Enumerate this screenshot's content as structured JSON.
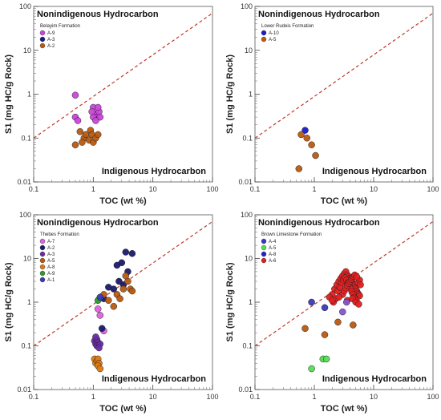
{
  "chart_data": [
    {
      "type": "scatter",
      "log_x": true,
      "log_y": true,
      "xlim": [
        0.1,
        100
      ],
      "ylim": [
        0.01,
        100
      ],
      "xticks": [
        "0.1",
        "1",
        "10",
        "100"
      ],
      "yticks": [
        "0.01",
        "0.1",
        "1",
        "10",
        "100"
      ],
      "xlabel": "TOC (wt %)",
      "ylabel": "S1 (mg HC/g Rock)",
      "upper_label": "Nonindigenous Hydrocarbon",
      "lower_label": "Indigenous Hydrocarbon",
      "divider_line": {
        "x": [
          0.1,
          100
        ],
        "y": [
          0.1,
          70
        ],
        "style": "dashed",
        "color": "#c0392b"
      },
      "legend_title": "Belayim Formation",
      "series": [
        {
          "name": "A-9",
          "color": "#cc44dd",
          "points": [
            [
              0.5,
              0.95
            ],
            [
              0.5,
              0.3
            ],
            [
              0.55,
              0.25
            ],
            [
              1.0,
              0.5
            ],
            [
              1.1,
              0.35
            ],
            [
              1.15,
              0.3
            ],
            [
              1.25,
              0.4
            ],
            [
              1.2,
              0.5
            ],
            [
              1.3,
              0.3
            ],
            [
              1.0,
              0.3
            ],
            [
              1.1,
              0.25
            ],
            [
              0.95,
              0.4
            ]
          ]
        },
        {
          "name": "A-3",
          "color": "#1a1a8c",
          "points": []
        },
        {
          "name": "A-2",
          "color": "#b85a10",
          "points": [
            [
              0.5,
              0.07
            ],
            [
              0.6,
              0.14
            ],
            [
              0.7,
              0.1
            ],
            [
              0.75,
              0.12
            ],
            [
              0.85,
              0.09
            ],
            [
              0.9,
              0.15
            ],
            [
              0.95,
              0.12
            ],
            [
              1.0,
              0.08
            ],
            [
              1.1,
              0.1
            ],
            [
              1.2,
              0.12
            ],
            [
              0.65,
              0.08
            ]
          ]
        }
      ]
    },
    {
      "type": "scatter",
      "log_x": true,
      "log_y": true,
      "xlim": [
        0.1,
        100
      ],
      "ylim": [
        0.01,
        100
      ],
      "xticks": [
        "0.1",
        "1",
        "10",
        "100"
      ],
      "yticks": [
        "0.01",
        "0.1",
        "1",
        "10",
        "100"
      ],
      "xlabel": "TOC (wt %)",
      "ylabel": "S1 (mg HC/g Rock)",
      "upper_label": "Nonindigenous Hydrocarbon",
      "lower_label": "Indigenous Hydrocarbon",
      "divider_line": {
        "x": [
          0.1,
          100
        ],
        "y": [
          0.1,
          70
        ],
        "style": "dashed",
        "color": "#c0392b"
      },
      "legend_title": "Lower Rudeis Formation",
      "series": [
        {
          "name": "A-10",
          "color": "#1a1acc",
          "points": [
            [
              0.7,
              0.15
            ]
          ]
        },
        {
          "name": "A-5",
          "color": "#b85a10",
          "points": [
            [
              0.6,
              0.12
            ],
            [
              0.75,
              0.1
            ],
            [
              0.9,
              0.07
            ],
            [
              1.05,
              0.04
            ],
            [
              0.55,
              0.02
            ]
          ]
        }
      ]
    },
    {
      "type": "scatter",
      "log_x": true,
      "log_y": true,
      "xlim": [
        0.1,
        100
      ],
      "ylim": [
        0.01,
        100
      ],
      "xticks": [
        "0.1",
        "1",
        "10",
        "100"
      ],
      "yticks": [
        "0.01",
        "0.1",
        "1",
        "10",
        "100"
      ],
      "xlabel": "TOC (wt %)",
      "ylabel": "S1 (mg HC/g Rock)",
      "upper_label": "Nonindigenous Hydrocarbon",
      "lower_label": "Indigenous Hydrocarbon",
      "divider_line": {
        "x": [
          0.1,
          100
        ],
        "y": [
          0.1,
          70
        ],
        "style": "dashed",
        "color": "#c0392b"
      },
      "legend_title": "Thebes Formation",
      "series": [
        {
          "name": "A-7",
          "color": "#e060e0",
          "points": [
            [
              1.3,
              0.5
            ],
            [
              1.5,
              0.22
            ],
            [
              1.2,
              0.7
            ]
          ]
        },
        {
          "name": "A-2",
          "color": "#1a1a6e",
          "points": [
            [
              3.5,
              14
            ],
            [
              4.5,
              13
            ],
            [
              3.0,
              8
            ],
            [
              2.5,
              7
            ],
            [
              3.8,
              5
            ],
            [
              2.7,
              3
            ],
            [
              2.2,
              2
            ],
            [
              1.5,
              1.2
            ],
            [
              3.2,
              2.5
            ],
            [
              1.8,
              2.2
            ],
            [
              1.4,
              0.25
            ]
          ]
        },
        {
          "name": "A-3",
          "color": "#6a2aa8",
          "points": [
            [
              1.05,
              0.13
            ],
            [
              1.1,
              0.11
            ],
            [
              1.15,
              0.1
            ],
            [
              1.2,
              0.12
            ],
            [
              1.3,
              0.11
            ],
            [
              1.25,
              0.09
            ],
            [
              1.15,
              0.14
            ],
            [
              1.1,
              0.16
            ]
          ]
        },
        {
          "name": "A-5",
          "color": "#b85a10",
          "points": [
            [
              2.5,
              1.5
            ],
            [
              3.2,
              2
            ],
            [
              3.8,
              3
            ],
            [
              4.2,
              2
            ],
            [
              3.5,
              4
            ],
            [
              2.8,
              1.2
            ],
            [
              1.5,
              1.5
            ],
            [
              1.8,
              1.1
            ],
            [
              2.2,
              0.8
            ],
            [
              4.5,
              1.8
            ]
          ]
        },
        {
          "name": "A-8",
          "color": "#e07a10",
          "points": [
            [
              1.05,
              0.05
            ],
            [
              1.1,
              0.04
            ],
            [
              1.15,
              0.045
            ],
            [
              1.2,
              0.05
            ],
            [
              1.25,
              0.04
            ],
            [
              1.2,
              0.035
            ],
            [
              1.3,
              0.03
            ]
          ]
        },
        {
          "name": "A-9",
          "color": "#2a9a2a",
          "points": [
            [
              1.2,
              1.1
            ]
          ]
        },
        {
          "name": "A-1",
          "color": "#3a3ab8",
          "points": [
            [
              1.3,
              1.3
            ]
          ]
        }
      ]
    },
    {
      "type": "scatter",
      "log_x": true,
      "log_y": true,
      "xlim": [
        0.1,
        100
      ],
      "ylim": [
        0.01,
        100
      ],
      "xticks": [
        "0.1",
        "1",
        "10",
        "100"
      ],
      "yticks": [
        "0.01",
        "0.1",
        "1",
        "10",
        "100"
      ],
      "xlabel": "TOC (wt %)",
      "ylabel": "S1 (mg HC/g Rock)",
      "upper_label": "Nonindigenous Hydrocarbon",
      "lower_label": "Indigenous Hydrocarbon",
      "divider_line": {
        "x": [
          0.1,
          100
        ],
        "y": [
          0.1,
          70
        ],
        "style": "dashed",
        "color": "#c0392b"
      },
      "legend_title": "Brown Limestone Formation",
      "series": [
        {
          "name": "A-4",
          "color": "#3a3ab8",
          "points": [
            [
              0.9,
              1.0
            ],
            [
              1.5,
              0.75
            ]
          ]
        },
        {
          "name": "A-5",
          "color": "#55dd55",
          "points": [
            [
              0.9,
              0.03
            ],
            [
              1.4,
              0.05
            ],
            [
              1.6,
              0.05
            ]
          ]
        },
        {
          "name": "A-8",
          "color": "#2222cc",
          "points": []
        },
        {
          "name": "A-6",
          "color": "#e02020",
          "points": [
            [
              2.0,
              1.5
            ],
            [
              2.2,
              2.0
            ],
            [
              2.4,
              2.5
            ],
            [
              2.6,
              3.0
            ],
            [
              2.8,
              3.5
            ],
            [
              3.0,
              4.0
            ],
            [
              3.2,
              4.5
            ],
            [
              3.4,
              5.0
            ],
            [
              3.6,
              4.2
            ],
            [
              3.8,
              3.8
            ],
            [
              4.0,
              3.5
            ],
            [
              4.2,
              3.0
            ],
            [
              4.4,
              2.8
            ],
            [
              4.6,
              2.5
            ],
            [
              4.8,
              2.2
            ],
            [
              5.0,
              2.0
            ],
            [
              5.2,
              1.8
            ],
            [
              5.4,
              1.6
            ],
            [
              5.6,
              1.5
            ],
            [
              5.8,
              1.4
            ],
            [
              2.5,
              1.8
            ],
            [
              2.7,
              2.2
            ],
            [
              2.9,
              2.8
            ],
            [
              3.1,
              3.2
            ],
            [
              3.3,
              3.6
            ],
            [
              3.5,
              3.2
            ],
            [
              3.7,
              2.8
            ],
            [
              3.9,
              2.4
            ],
            [
              4.1,
              2.0
            ],
            [
              4.3,
              1.7
            ],
            [
              4.5,
              1.5
            ],
            [
              4.7,
              1.3
            ],
            [
              4.9,
              1.2
            ],
            [
              5.1,
              1.1
            ],
            [
              3.0,
              1.5
            ],
            [
              3.2,
              1.8
            ],
            [
              3.4,
              2.1
            ],
            [
              3.6,
              2.4
            ],
            [
              3.8,
              2.7
            ],
            [
              4.0,
              3.0
            ],
            [
              4.2,
              3.3
            ],
            [
              4.4,
              3.6
            ],
            [
              4.6,
              3.9
            ],
            [
              2.1,
              1.0
            ],
            [
              2.3,
              1.2
            ],
            [
              5.5,
              2.8
            ],
            [
              5.8,
              3.2
            ],
            [
              6.0,
              2.5
            ],
            [
              4.8,
              4.2
            ],
            [
              5.2,
              3.8
            ],
            [
              2.6,
              1.3
            ],
            [
              3.6,
              1.1
            ],
            [
              4.4,
              1.2
            ],
            [
              5.0,
              1.0
            ],
            [
              5.6,
              0.9
            ],
            [
              1.8,
              1.3
            ],
            [
              2.0,
              1.1
            ]
          ]
        },
        {
          "name": "",
          "color": "#b85a10",
          "points": [
            [
              0.7,
              0.25
            ],
            [
              1.5,
              0.18
            ],
            [
              2.5,
              0.35
            ],
            [
              4.5,
              0.3
            ]
          ]
        },
        {
          "name": "",
          "color": "#8855cc",
          "points": [
            [
              3.0,
              0.6
            ],
            [
              3.5,
              1.0
            ]
          ]
        }
      ]
    }
  ]
}
